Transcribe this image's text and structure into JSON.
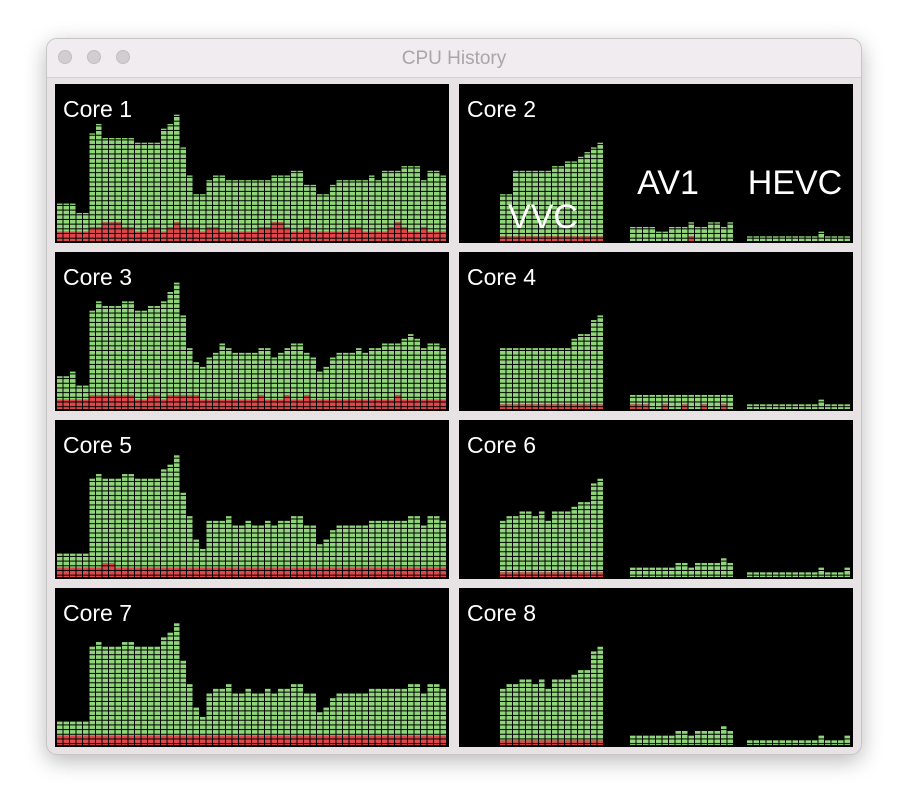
{
  "window": {
    "title": "CPU History"
  },
  "annotations": [
    "VVC",
    "AV1",
    "HEVC"
  ],
  "cores": [
    {
      "label": "Core 1",
      "user": [
        6,
        6,
        6,
        4,
        4,
        20,
        22,
        18,
        18,
        18,
        19,
        19,
        19,
        19,
        18,
        18,
        22,
        22,
        23,
        17,
        11,
        7,
        8,
        10,
        11,
        12,
        11,
        11,
        11,
        11,
        11,
        10,
        10,
        10,
        10,
        11,
        13,
        13,
        9,
        10,
        8,
        8,
        10,
        11,
        11,
        10,
        10,
        11,
        12,
        11,
        13,
        12,
        11,
        13,
        14,
        14,
        10,
        13,
        13,
        12
      ],
      "system": [
        2,
        2,
        2,
        2,
        2,
        3,
        3,
        4,
        4,
        4,
        3,
        3,
        2,
        2,
        3,
        3,
        2,
        3,
        4,
        3,
        3,
        3,
        2,
        3,
        3,
        2,
        2,
        2,
        2,
        2,
        2,
        3,
        3,
        4,
        4,
        3,
        2,
        2,
        3,
        2,
        2,
        2,
        2,
        2,
        2,
        3,
        3,
        2,
        2,
        2,
        2,
        3,
        4,
        3,
        2,
        2,
        3,
        2,
        2,
        2
      ]
    },
    {
      "label": "Core 2",
      "user": [
        0,
        0,
        0,
        0,
        0,
        0,
        9,
        9,
        14,
        14,
        14,
        14,
        14,
        14,
        15,
        15,
        16,
        16,
        17,
        18,
        19,
        20,
        0,
        0,
        0,
        0,
        3,
        3,
        3,
        3,
        2,
        2,
        3,
        3,
        3,
        3,
        3,
        3,
        4,
        4,
        3,
        4,
        0,
        0,
        1,
        1,
        1,
        1,
        1,
        1,
        1,
        1,
        1,
        1,
        1,
        2,
        1,
        1,
        1,
        1
      ],
      "system": [
        0,
        0,
        0,
        0,
        0,
        0,
        1,
        1,
        1,
        1,
        1,
        1,
        1,
        1,
        1,
        1,
        1,
        1,
        1,
        1,
        1,
        1,
        0,
        0,
        0,
        0,
        0,
        0,
        0,
        0,
        0,
        0,
        0,
        0,
        0,
        1,
        0,
        0,
        0,
        0,
        0,
        0,
        0,
        0,
        0,
        0,
        0,
        0,
        0,
        0,
        0,
        0,
        0,
        0,
        0,
        0,
        0,
        0,
        0,
        0
      ]
    },
    {
      "label": "Core 3",
      "user": [
        5,
        5,
        6,
        3,
        3,
        18,
        20,
        19,
        19,
        19,
        20,
        20,
        19,
        19,
        19,
        19,
        21,
        22,
        24,
        17,
        10,
        7,
        7,
        9,
        10,
        12,
        11,
        10,
        10,
        10,
        10,
        10,
        11,
        9,
        10,
        10,
        12,
        12,
        9,
        9,
        6,
        7,
        9,
        10,
        10,
        10,
        11,
        10,
        11,
        11,
        12,
        12,
        11,
        13,
        14,
        13,
        11,
        12,
        12,
        11
      ],
      "system": [
        2,
        2,
        2,
        2,
        2,
        3,
        3,
        3,
        3,
        3,
        3,
        3,
        2,
        2,
        3,
        3,
        2,
        3,
        3,
        3,
        3,
        3,
        2,
        2,
        2,
        2,
        2,
        2,
        2,
        2,
        2,
        3,
        2,
        2,
        2,
        3,
        2,
        2,
        3,
        2,
        2,
        2,
        2,
        2,
        2,
        2,
        2,
        2,
        2,
        2,
        2,
        2,
        3,
        2,
        2,
        2,
        2,
        2,
        2,
        2
      ]
    },
    {
      "label": "Core 4",
      "user": [
        0,
        0,
        0,
        0,
        0,
        0,
        12,
        12,
        12,
        12,
        12,
        12,
        12,
        12,
        12,
        12,
        12,
        14,
        15,
        15,
        18,
        19,
        0,
        0,
        0,
        0,
        2,
        2,
        2,
        3,
        3,
        2,
        3,
        3,
        2,
        3,
        3,
        2,
        3,
        3,
        2,
        3,
        0,
        0,
        1,
        1,
        1,
        1,
        1,
        1,
        1,
        1,
        1,
        1,
        1,
        2,
        1,
        1,
        1,
        1
      ],
      "system": [
        0,
        0,
        0,
        0,
        0,
        0,
        1,
        1,
        1,
        1,
        1,
        1,
        1,
        1,
        1,
        1,
        1,
        1,
        1,
        1,
        1,
        1,
        0,
        0,
        0,
        0,
        1,
        1,
        1,
        0,
        0,
        1,
        0,
        0,
        1,
        0,
        0,
        1,
        0,
        0,
        1,
        0,
        0,
        0,
        0,
        0,
        0,
        0,
        0,
        0,
        0,
        0,
        0,
        0,
        0,
        0,
        0,
        0,
        0,
        0
      ]
    },
    {
      "label": "Core 5",
      "user": [
        3,
        3,
        3,
        3,
        3,
        19,
        20,
        18,
        18,
        19,
        20,
        20,
        19,
        19,
        19,
        19,
        21,
        22,
        24,
        16,
        11,
        6,
        4,
        10,
        10,
        10,
        11,
        9,
        9,
        10,
        9,
        9,
        10,
        9,
        10,
        10,
        11,
        11,
        9,
        9,
        5,
        6,
        8,
        9,
        9,
        9,
        9,
        9,
        10,
        10,
        10,
        10,
        10,
        10,
        11,
        11,
        9,
        11,
        11,
        10
      ],
      "system": [
        2,
        2,
        2,
        2,
        2,
        2,
        2,
        3,
        3,
        2,
        2,
        2,
        2,
        2,
        2,
        2,
        2,
        2,
        2,
        2,
        2,
        2,
        2,
        2,
        2,
        2,
        2,
        2,
        2,
        2,
        2,
        2,
        2,
        2,
        2,
        2,
        2,
        2,
        2,
        2,
        2,
        2,
        2,
        2,
        2,
        2,
        2,
        2,
        2,
        2,
        2,
        2,
        2,
        2,
        2,
        2,
        2,
        2,
        2,
        2
      ]
    },
    {
      "label": "Core 6",
      "user": [
        0,
        0,
        0,
        0,
        0,
        0,
        11,
        12,
        12,
        13,
        13,
        12,
        13,
        11,
        13,
        13,
        13,
        14,
        15,
        15,
        19,
        20,
        0,
        0,
        0,
        0,
        2,
        2,
        2,
        2,
        2,
        2,
        2,
        3,
        3,
        2,
        3,
        3,
        3,
        3,
        4,
        3,
        0,
        0,
        1,
        1,
        1,
        1,
        1,
        1,
        1,
        1,
        1,
        1,
        1,
        2,
        1,
        1,
        1,
        2
      ],
      "system": [
        0,
        0,
        0,
        0,
        0,
        0,
        1,
        1,
        1,
        1,
        1,
        1,
        1,
        1,
        1,
        1,
        1,
        1,
        1,
        1,
        1,
        1,
        0,
        0,
        0,
        0,
        0,
        0,
        0,
        0,
        0,
        0,
        0,
        0,
        0,
        0,
        0,
        0,
        0,
        0,
        0,
        0,
        0,
        0,
        0,
        0,
        0,
        0,
        0,
        0,
        0,
        0,
        0,
        0,
        0,
        0,
        0,
        0,
        0,
        0
      ]
    },
    {
      "label": "Core 7",
      "user": [
        3,
        3,
        3,
        3,
        3,
        19,
        20,
        19,
        19,
        19,
        20,
        20,
        19,
        19,
        19,
        19,
        21,
        22,
        24,
        16,
        11,
        6,
        4,
        9,
        10,
        10,
        11,
        9,
        9,
        10,
        9,
        9,
        10,
        9,
        10,
        10,
        11,
        11,
        9,
        9,
        5,
        6,
        8,
        9,
        9,
        9,
        9,
        9,
        10,
        10,
        10,
        10,
        10,
        10,
        11,
        11,
        9,
        11,
        11,
        10
      ],
      "system": [
        2,
        2,
        2,
        2,
        2,
        2,
        2,
        2,
        2,
        2,
        2,
        2,
        2,
        2,
        2,
        2,
        2,
        2,
        2,
        2,
        2,
        2,
        2,
        2,
        2,
        2,
        2,
        2,
        2,
        2,
        2,
        2,
        2,
        2,
        2,
        2,
        2,
        2,
        2,
        2,
        2,
        2,
        2,
        2,
        2,
        2,
        2,
        2,
        2,
        2,
        2,
        2,
        2,
        2,
        2,
        2,
        2,
        2,
        2,
        2
      ]
    },
    {
      "label": "Core 8",
      "user": [
        0,
        0,
        0,
        0,
        0,
        0,
        11,
        12,
        12,
        13,
        13,
        12,
        13,
        11,
        13,
        13,
        13,
        14,
        15,
        15,
        19,
        20,
        0,
        0,
        0,
        0,
        2,
        2,
        2,
        2,
        2,
        2,
        2,
        3,
        3,
        2,
        3,
        3,
        3,
        3,
        4,
        3,
        0,
        0,
        1,
        1,
        1,
        1,
        1,
        1,
        1,
        1,
        1,
        1,
        1,
        2,
        1,
        1,
        1,
        2
      ],
      "system": [
        0,
        0,
        0,
        0,
        0,
        0,
        1,
        1,
        1,
        1,
        1,
        1,
        1,
        1,
        1,
        1,
        1,
        1,
        1,
        1,
        1,
        1,
        0,
        0,
        0,
        0,
        0,
        0,
        0,
        0,
        0,
        0,
        0,
        0,
        0,
        0,
        0,
        0,
        0,
        0,
        0,
        0,
        0,
        0,
        0,
        0,
        0,
        0,
        0,
        0,
        0,
        0,
        0,
        0,
        0,
        0,
        0,
        0,
        0,
        0
      ]
    }
  ]
}
